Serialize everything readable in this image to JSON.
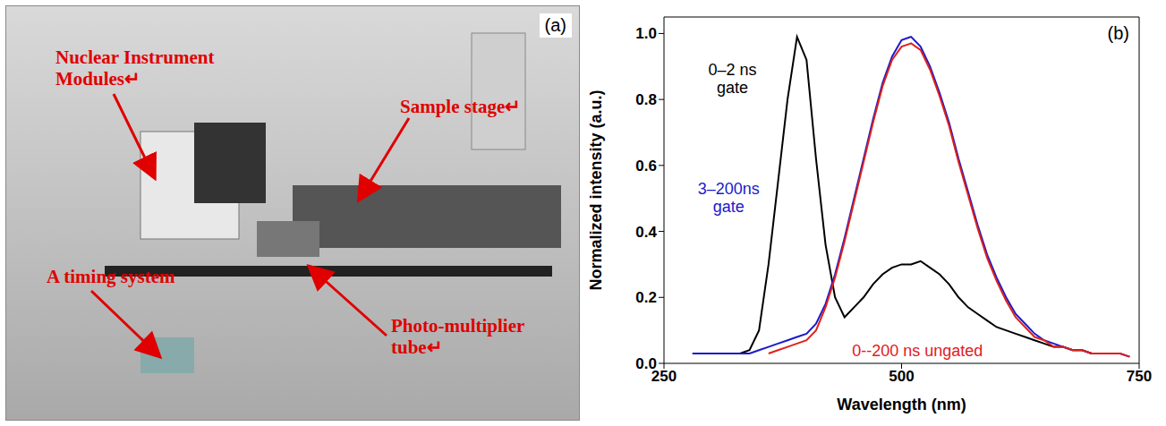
{
  "photo": {
    "label": "(a)",
    "annotations": [
      "Nuclear Instrument Modules↵",
      "Sample stage↵",
      "A timing system",
      "Photo-multiplier tube↵"
    ]
  },
  "chart_data": {
    "type": "line",
    "panel_label": "(b)",
    "x_label": "Wavelength (nm)",
    "y_label": "Normalized intensity (a.u.)",
    "xlim": [
      250,
      750
    ],
    "xticks": [
      250,
      500,
      750
    ],
    "ylim": [
      0,
      1.05
    ],
    "yticks": [
      {
        "value": 0,
        "label": "0.0"
      },
      0.2,
      0.4,
      0.6,
      0.8,
      {
        "value": 1,
        "label": "1.0"
      }
    ],
    "x": [
      280,
      290,
      300,
      310,
      320,
      330,
      340,
      350,
      360,
      370,
      380,
      390,
      400,
      410,
      420,
      430,
      440,
      450,
      460,
      470,
      480,
      490,
      500,
      510,
      520,
      530,
      540,
      550,
      560,
      570,
      580,
      590,
      600,
      610,
      620,
      630,
      640,
      650,
      660,
      670,
      680,
      690,
      700,
      710,
      720,
      730,
      740
    ],
    "series": [
      {
        "name": "0–2 ns gate",
        "color": "#000000",
        "values": [
          0.03,
          0.03,
          0.03,
          0.03,
          0.03,
          0.03,
          0.04,
          0.1,
          0.3,
          0.55,
          0.8,
          0.99,
          0.92,
          0.62,
          0.36,
          0.2,
          0.14,
          0.17,
          0.2,
          0.24,
          0.27,
          0.29,
          0.3,
          0.3,
          0.31,
          0.29,
          0.27,
          0.24,
          0.2,
          0.17,
          0.15,
          0.13,
          0.11,
          0.1,
          0.09,
          0.08,
          0.07,
          0.06,
          0.05,
          0.05,
          0.04,
          0.04,
          0.03,
          null,
          null,
          null,
          null
        ]
      },
      {
        "name": "3–200ns gate",
        "color": "#1a1acc",
        "values": [
          0.03,
          0.03,
          0.03,
          0.03,
          0.03,
          0.03,
          0.03,
          0.04,
          0.05,
          0.06,
          0.07,
          0.08,
          0.09,
          0.12,
          0.18,
          0.27,
          0.38,
          0.5,
          0.62,
          0.74,
          0.85,
          0.93,
          0.98,
          0.99,
          0.96,
          0.9,
          0.82,
          0.73,
          0.62,
          0.52,
          0.42,
          0.33,
          0.26,
          0.2,
          0.15,
          0.12,
          0.09,
          0.07,
          0.06,
          0.05,
          0.04,
          0.04,
          0.03,
          0.03,
          0.03,
          0.03,
          0.02
        ]
      },
      {
        "name": "0--200 ns ungated",
        "color": "#e0201c",
        "values": [
          null,
          null,
          null,
          null,
          null,
          null,
          null,
          null,
          0.03,
          0.04,
          0.05,
          0.06,
          0.07,
          0.1,
          0.17,
          0.26,
          0.37,
          0.49,
          0.61,
          0.73,
          0.84,
          0.92,
          0.96,
          0.97,
          0.95,
          0.89,
          0.81,
          0.72,
          0.61,
          0.51,
          0.41,
          0.32,
          0.25,
          0.19,
          0.14,
          0.11,
          0.08,
          0.07,
          0.05,
          0.05,
          0.04,
          0.04,
          0.03,
          0.03,
          0.03,
          0.03,
          0.02
        ]
      }
    ]
  }
}
